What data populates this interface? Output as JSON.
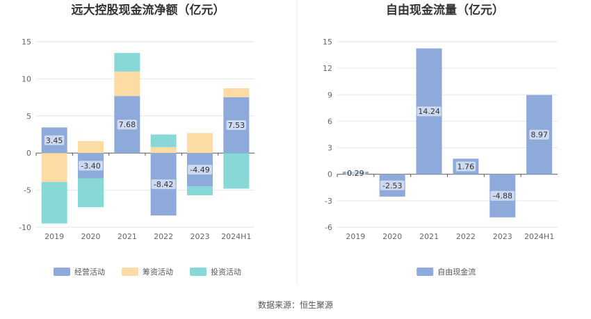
{
  "source_text": "数据来源：恒生聚源",
  "chart_data": [
    {
      "type": "bar",
      "stacked": true,
      "title": "远大控股现金流净额（亿元）",
      "categories": [
        "2019",
        "2020",
        "2021",
        "2022",
        "2023",
        "2024H1"
      ],
      "ylim": [
        -10,
        15
      ],
      "yticks": [
        15,
        10,
        5,
        0,
        -5,
        -10
      ],
      "grid": true,
      "legend_position": "bottom",
      "series": [
        {
          "name": "经营活动",
          "color": "#8eaadb",
          "values": [
            3.45,
            -3.4,
            7.68,
            -8.42,
            -4.49,
            7.53
          ],
          "labels": [
            "3.45",
            "-3.40",
            "7.68",
            "-8.42",
            "-4.49",
            "7.53"
          ]
        },
        {
          "name": "筹资活动",
          "color": "#fcdca4",
          "values": [
            -3.9,
            1.6,
            3.3,
            0.8,
            2.7,
            1.2
          ]
        },
        {
          "name": "投资活动",
          "color": "#88d8d8",
          "values": [
            -5.6,
            -3.9,
            2.5,
            1.7,
            -1.2,
            -4.8
          ]
        }
      ]
    },
    {
      "type": "bar",
      "title": "自由现金流量（亿元）",
      "categories": [
        "2019",
        "2020",
        "2021",
        "2022",
        "2023",
        "2024H1"
      ],
      "ylim": [
        -6,
        15
      ],
      "yticks": [
        15,
        12,
        9,
        6,
        3,
        0,
        -3,
        -6
      ],
      "grid": true,
      "legend_position": "bottom",
      "series": [
        {
          "name": "自由现金流",
          "color": "#8eaadb",
          "values": [
            0.29,
            -2.53,
            14.24,
            1.76,
            -4.88,
            8.97
          ],
          "labels": [
            "0.29",
            "-2.53",
            "14.24",
            "1.76",
            "-4.88",
            "8.97"
          ]
        }
      ]
    }
  ]
}
